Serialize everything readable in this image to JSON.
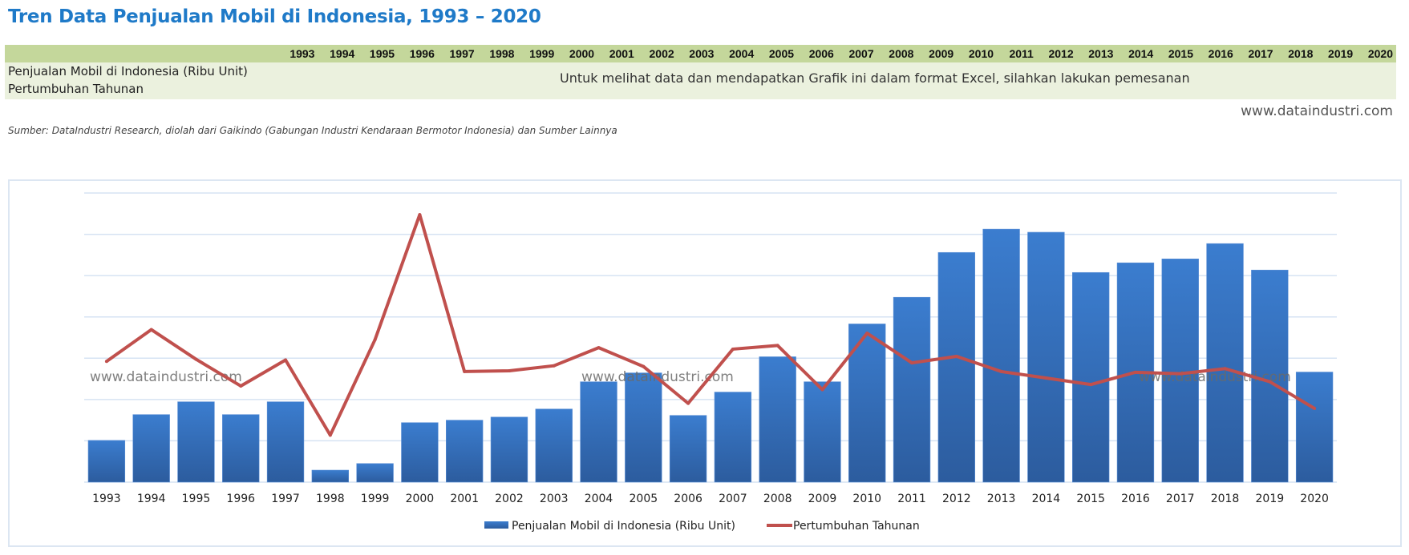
{
  "header": {
    "title": "Tren Data Penjualan Mobil di Indonesia, 1993 – 2020"
  },
  "table": {
    "years": [
      "1993",
      "1994",
      "1995",
      "1996",
      "1997",
      "1998",
      "1999",
      "2000",
      "2001",
      "2002",
      "2003",
      "2004",
      "2005",
      "2006",
      "2007",
      "2008",
      "2009",
      "2010",
      "2011",
      "2012",
      "2013",
      "2014",
      "2015",
      "2016",
      "2017",
      "2018",
      "2019",
      "2020"
    ],
    "row_labels": [
      "Penjualan Mobil di Indonesia (Ribu Unit)",
      "Pertumbuhan  Tahunan"
    ],
    "notice": "Untuk melihat data dan mendapatkan Grafik ini dalam format Excel, silahkan lakukan pemesanan",
    "header_color": "#c4d79b",
    "body_color": "#ebf1de"
  },
  "website": "www.dataindustri.com",
  "source": "Sumber: DataIndustri Research, diolah dari Gaikindo (Gabungan Industri Kendaraan Bermotor Indonesia) dan Sumber Lainnya",
  "chart_data": {
    "type": "bar",
    "title": "",
    "xlabel": "",
    "ylabel": "",
    "categories": [
      "1993",
      "1994",
      "1995",
      "1996",
      "1997",
      "1998",
      "1999",
      "2000",
      "2001",
      "2002",
      "2003",
      "2004",
      "2005",
      "2006",
      "2007",
      "2008",
      "2009",
      "2010",
      "2011",
      "2012",
      "2013",
      "2014",
      "2015",
      "2016",
      "2017",
      "2018",
      "2019",
      "2020"
    ],
    "series": [
      {
        "name": "Penjualan Mobil di Indonesia (Ribu Unit)",
        "type": "bar",
        "axis": "primary",
        "color": "#3a78c3",
        "values": [
          202,
          327,
          389,
          327,
          389,
          58,
          90,
          288,
          300,
          315,
          354,
          486,
          529,
          323,
          436,
          607,
          486,
          766,
          895,
          1112,
          1225,
          1210,
          1015,
          1062,
          1081,
          1155,
          1027,
          533
        ]
      },
      {
        "name": "Pertumbuhan  Tahunan",
        "type": "line",
        "axis": "secondary",
        "unit": "%",
        "color": "#c0504d",
        "values": [
          17,
          61,
          20,
          -17,
          19,
          -85,
          47,
          220,
          3,
          4,
          11,
          36,
          10,
          -41,
          34,
          39,
          -22,
          56,
          15,
          24,
          3,
          -6,
          -15,
          2,
          0,
          7,
          -11,
          -48
        ]
      }
    ],
    "ylim": [
      0,
      1400
    ],
    "ystep": 200,
    "y2lim": [
      -150,
      250
    ],
    "axis_labels_visible": false,
    "grid": true,
    "legend": "bottom",
    "watermarks": [
      "www.dataindustri.com",
      "www.dataindustri.com",
      "www.dataindustri.com"
    ]
  }
}
